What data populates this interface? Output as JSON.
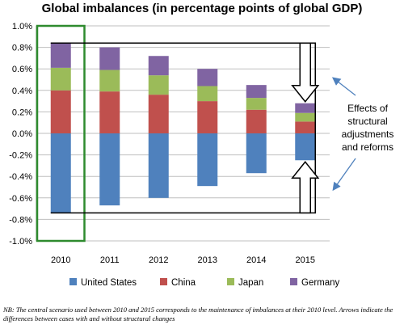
{
  "chart_data": {
    "type": "bar",
    "stacked": true,
    "title": "Global imbalances (in percentage points of global GDP)",
    "categories": [
      "2010",
      "2011",
      "2012",
      "2013",
      "2014",
      "2015"
    ],
    "series": [
      {
        "name": "United States",
        "color": "#4f81bd",
        "values": [
          -0.74,
          -0.67,
          -0.6,
          -0.49,
          -0.37,
          -0.25
        ]
      },
      {
        "name": "China",
        "color": "#c0504d",
        "values": [
          0.4,
          0.39,
          0.36,
          0.3,
          0.22,
          0.11
        ]
      },
      {
        "name": "Japan",
        "color": "#9bbb59",
        "values": [
          0.21,
          0.2,
          0.18,
          0.14,
          0.11,
          0.08
        ]
      },
      {
        "name": "Germany",
        "color": "#8064a2",
        "values": [
          0.23,
          0.21,
          0.18,
          0.16,
          0.12,
          0.09
        ]
      }
    ],
    "ylim": [
      -1.0,
      1.0
    ],
    "yticks": [
      "-1.0%",
      "-0.8%",
      "-0.6%",
      "-0.4%",
      "-0.2%",
      "0.0%",
      "0.2%",
      "0.4%",
      "0.6%",
      "0.8%",
      "1.0%"
    ],
    "grid": true,
    "legend_position": "bottom",
    "highlight_category": "2010",
    "highlight_color": "#2e8b2e",
    "baseline_box": {
      "from": "2010",
      "to": "2015",
      "top": 0.84,
      "bottom": -0.74
    },
    "annotation": [
      "Effects of",
      "structural",
      "adjustments",
      "and reforms"
    ]
  },
  "note": "NB: The central scenario used between 2010 and 2015 corresponds to the maintenance of imbalances at their 2010 level. Arrows indicate the differences between cases with and without structural changes"
}
